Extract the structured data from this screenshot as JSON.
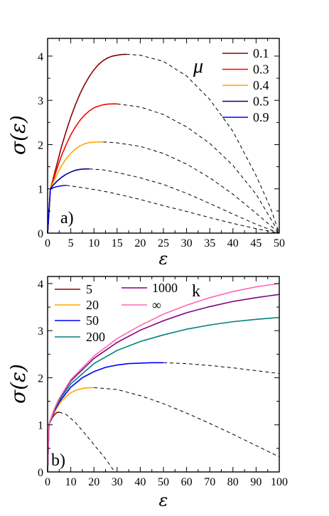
{
  "chart_data": [
    {
      "type": "line",
      "panel_label": "a)",
      "xlabel": "ε",
      "ylabel": "σ(ε)",
      "xlim": [
        0,
        50
      ],
      "ylim": [
        0,
        4.4
      ],
      "xticks": [
        0,
        5,
        10,
        15,
        20,
        25,
        30,
        35,
        40,
        45,
        50
      ],
      "yticks": [
        0,
        1,
        2,
        3,
        4
      ],
      "legend_title": "μ",
      "legend_position": "top-right",
      "grid": false,
      "series": [
        {
          "name": "0.1",
          "color": "#8b0000",
          "solid": [
            [
              0,
              0
            ],
            [
              0.6,
              1.0
            ],
            [
              1,
              1.15
            ],
            [
              2,
              1.55
            ],
            [
              3,
              1.95
            ],
            [
              4,
              2.3
            ],
            [
              5,
              2.62
            ],
            [
              6,
              2.9
            ],
            [
              7,
              3.15
            ],
            [
              8,
              3.36
            ],
            [
              9,
              3.54
            ],
            [
              10,
              3.69
            ],
            [
              11,
              3.81
            ],
            [
              12,
              3.9
            ],
            [
              13,
              3.96
            ],
            [
              14,
              4.0
            ],
            [
              15,
              4.02
            ],
            [
              16,
              4.035
            ],
            [
              17,
              4.04
            ]
          ],
          "dashed": [
            [
              17,
              4.04
            ],
            [
              20,
              4.02
            ],
            [
              25,
              3.88
            ],
            [
              30,
              3.55
            ],
            [
              35,
              3.02
            ],
            [
              40,
              2.3
            ],
            [
              45,
              1.3
            ],
            [
              48,
              0.6
            ],
            [
              50,
              0.0
            ]
          ]
        },
        {
          "name": "0.3",
          "color": "#ff0000",
          "solid": [
            [
              0,
              0
            ],
            [
              0.6,
              1.0
            ],
            [
              1,
              1.12
            ],
            [
              2,
              1.45
            ],
            [
              3,
              1.75
            ],
            [
              4,
              2.0
            ],
            [
              5,
              2.22
            ],
            [
              6,
              2.4
            ],
            [
              7,
              2.55
            ],
            [
              8,
              2.67
            ],
            [
              9,
              2.76
            ],
            [
              10,
              2.83
            ],
            [
              11,
              2.87
            ],
            [
              12,
              2.9
            ],
            [
              13,
              2.915
            ],
            [
              14,
              2.92
            ],
            [
              15,
              2.92
            ]
          ],
          "dashed": [
            [
              15,
              2.92
            ],
            [
              20,
              2.85
            ],
            [
              25,
              2.68
            ],
            [
              30,
              2.4
            ],
            [
              35,
              2.03
            ],
            [
              40,
              1.53
            ],
            [
              45,
              0.88
            ],
            [
              50,
              0.0
            ]
          ]
        },
        {
          "name": "0.4",
          "color": "#ffa500",
          "solid": [
            [
              0,
              0
            ],
            [
              0.6,
              1.0
            ],
            [
              1,
              1.1
            ],
            [
              2,
              1.32
            ],
            [
              3,
              1.52
            ],
            [
              4,
              1.68
            ],
            [
              5,
              1.8
            ],
            [
              6,
              1.9
            ],
            [
              7,
              1.97
            ],
            [
              8,
              2.02
            ],
            [
              9,
              2.045
            ],
            [
              10,
              2.055
            ],
            [
              11,
              2.06
            ],
            [
              12,
              2.06
            ]
          ],
          "dashed": [
            [
              12,
              2.06
            ],
            [
              15,
              2.04
            ],
            [
              20,
              1.96
            ],
            [
              25,
              1.8
            ],
            [
              30,
              1.56
            ],
            [
              35,
              1.25
            ],
            [
              40,
              0.88
            ],
            [
              45,
              0.45
            ],
            [
              50,
              0.0
            ]
          ]
        },
        {
          "name": "0.5",
          "color": "#00008b",
          "solid": [
            [
              0,
              0
            ],
            [
              0.6,
              1.0
            ],
            [
              1,
              1.06
            ],
            [
              2,
              1.17
            ],
            [
              3,
              1.26
            ],
            [
              4,
              1.33
            ],
            [
              5,
              1.38
            ],
            [
              6,
              1.42
            ],
            [
              7,
              1.44
            ],
            [
              8,
              1.45
            ],
            [
              9,
              1.45
            ]
          ],
          "dashed": [
            [
              9,
              1.45
            ],
            [
              12,
              1.43
            ],
            [
              15,
              1.37
            ],
            [
              20,
              1.25
            ],
            [
              25,
              1.1
            ],
            [
              30,
              0.9
            ],
            [
              35,
              0.67
            ],
            [
              40,
              0.43
            ],
            [
              45,
              0.2
            ],
            [
              50,
              0.0
            ]
          ]
        },
        {
          "name": "0.9",
          "color": "#0000ff",
          "solid": [
            [
              0,
              0
            ],
            [
              0.6,
              1.0
            ],
            [
              1,
              1.02
            ],
            [
              2,
              1.05
            ],
            [
              3,
              1.07
            ],
            [
              4,
              1.08
            ]
          ],
          "dashed": [
            [
              4,
              1.08
            ],
            [
              8,
              1.02
            ],
            [
              12,
              0.95
            ],
            [
              16,
              0.86
            ],
            [
              20,
              0.76
            ],
            [
              25,
              0.62
            ],
            [
              30,
              0.49
            ],
            [
              35,
              0.35
            ],
            [
              40,
              0.22
            ],
            [
              45,
              0.1
            ],
            [
              50,
              0.0
            ]
          ]
        }
      ]
    },
    {
      "type": "line",
      "panel_label": "b)",
      "xlabel": "ε",
      "ylabel": "σ(ε)",
      "xlim": [
        0,
        100
      ],
      "ylim": [
        0,
        4.15
      ],
      "xticks": [
        0,
        10,
        20,
        30,
        40,
        50,
        60,
        70,
        80,
        90,
        100
      ],
      "yticks": [
        0,
        1,
        2,
        3,
        4
      ],
      "legend_title": "k",
      "legend_position": "top-left",
      "grid": false,
      "series": [
        {
          "name": "5",
          "color": "#8b0000",
          "solid": [
            [
              0,
              0
            ],
            [
              0.6,
              1.0
            ],
            [
              1,
              1.05
            ],
            [
              2,
              1.15
            ],
            [
              3,
              1.22
            ],
            [
              4,
              1.26
            ],
            [
              5,
              1.27
            ]
          ],
          "dashed": [
            [
              5,
              1.27
            ],
            [
              8,
              1.22
            ],
            [
              12,
              1.05
            ],
            [
              16,
              0.82
            ],
            [
              20,
              0.58
            ],
            [
              25,
              0.28
            ],
            [
              29,
              0.0
            ]
          ]
        },
        {
          "name": "20",
          "color": "#ffa500",
          "solid": [
            [
              0,
              0
            ],
            [
              0.6,
              1.0
            ],
            [
              1,
              1.06
            ],
            [
              2,
              1.18
            ],
            [
              4,
              1.36
            ],
            [
              6,
              1.5
            ],
            [
              8,
              1.6
            ],
            [
              10,
              1.68
            ],
            [
              12,
              1.73
            ],
            [
              14,
              1.76
            ],
            [
              16,
              1.78
            ],
            [
              18,
              1.79
            ],
            [
              20,
              1.79
            ]
          ],
          "dashed": [
            [
              20,
              1.79
            ],
            [
              30,
              1.75
            ],
            [
              40,
              1.62
            ],
            [
              50,
              1.45
            ],
            [
              60,
              1.25
            ],
            [
              70,
              1.03
            ],
            [
              80,
              0.8
            ],
            [
              90,
              0.56
            ],
            [
              100,
              0.32
            ]
          ]
        },
        {
          "name": "50",
          "color": "#0000ff",
          "solid": [
            [
              0,
              0
            ],
            [
              0.6,
              1.0
            ],
            [
              1,
              1.07
            ],
            [
              3,
              1.3
            ],
            [
              5,
              1.48
            ],
            [
              10,
              1.8
            ],
            [
              15,
              2.0
            ],
            [
              20,
              2.13
            ],
            [
              25,
              2.22
            ],
            [
              30,
              2.27
            ],
            [
              35,
              2.3
            ],
            [
              40,
              2.31
            ],
            [
              45,
              2.32
            ],
            [
              50,
              2.32
            ]
          ],
          "dashed": [
            [
              50,
              2.32
            ],
            [
              60,
              2.3
            ],
            [
              70,
              2.26
            ],
            [
              80,
              2.21
            ],
            [
              90,
              2.15
            ],
            [
              100,
              2.09
            ]
          ]
        },
        {
          "name": "200",
          "color": "#008080",
          "solid": [
            [
              0,
              0
            ],
            [
              0.6,
              1.0
            ],
            [
              1,
              1.07
            ],
            [
              3,
              1.32
            ],
            [
              5,
              1.52
            ],
            [
              10,
              1.87
            ],
            [
              20,
              2.3
            ],
            [
              30,
              2.58
            ],
            [
              40,
              2.77
            ],
            [
              50,
              2.91
            ],
            [
              60,
              3.03
            ],
            [
              70,
              3.12
            ],
            [
              80,
              3.19
            ],
            [
              90,
              3.24
            ],
            [
              100,
              3.28
            ]
          ],
          "dashed": []
        },
        {
          "name": "1000",
          "color": "#800080",
          "solid": [
            [
              0,
              0
            ],
            [
              0.6,
              1.0
            ],
            [
              1,
              1.08
            ],
            [
              3,
              1.34
            ],
            [
              5,
              1.55
            ],
            [
              10,
              1.93
            ],
            [
              20,
              2.41
            ],
            [
              30,
              2.75
            ],
            [
              40,
              3.01
            ],
            [
              50,
              3.21
            ],
            [
              60,
              3.38
            ],
            [
              70,
              3.51
            ],
            [
              80,
              3.62
            ],
            [
              90,
              3.7
            ],
            [
              100,
              3.77
            ]
          ],
          "dashed": []
        },
        {
          "name": "∞",
          "color": "#ff69b4",
          "solid": [
            [
              0,
              0
            ],
            [
              0.6,
              1.0
            ],
            [
              1,
              1.08
            ],
            [
              3,
              1.35
            ],
            [
              5,
              1.56
            ],
            [
              10,
              1.96
            ],
            [
              20,
              2.46
            ],
            [
              30,
              2.83
            ],
            [
              40,
              3.11
            ],
            [
              50,
              3.35
            ],
            [
              60,
              3.54
            ],
            [
              70,
              3.7
            ],
            [
              80,
              3.83
            ],
            [
              90,
              3.93
            ],
            [
              100,
              4.0
            ]
          ],
          "dashed": []
        }
      ]
    }
  ]
}
